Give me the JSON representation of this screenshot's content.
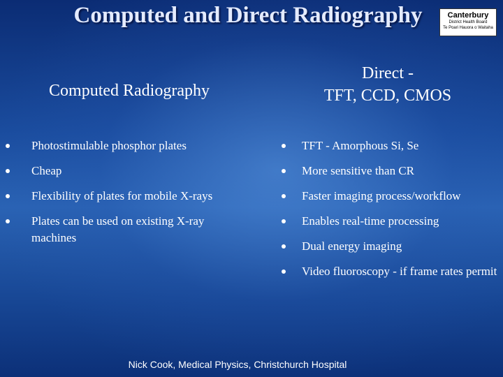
{
  "header": {
    "title": "Computed and Direct Radiography",
    "logo": [
      "Canterbury",
      "District Health Board",
      "Te Poari Hauora o Waitaha"
    ]
  },
  "columns": [
    {
      "heading": [
        "Computed Radiography"
      ],
      "items": [
        "Photostimulable phosphor plates",
        "Cheap",
        "Flexibility of plates for mobile X-rays",
        "Plates can be used on existing X-ray machines"
      ]
    },
    {
      "heading": [
        "Direct -",
        "TFT, CCD, CMOS"
      ],
      "items": [
        "TFT  - Amorphous Si, Se",
        "More sensitive than CR",
        "Faster imaging process/workflow",
        "Enables real-time processing",
        "Dual energy imaging",
        "Video fluoroscopy - if frame rates permit"
      ]
    }
  ],
  "footer": "Nick Cook, Medical Physics, Christchurch Hospital"
}
